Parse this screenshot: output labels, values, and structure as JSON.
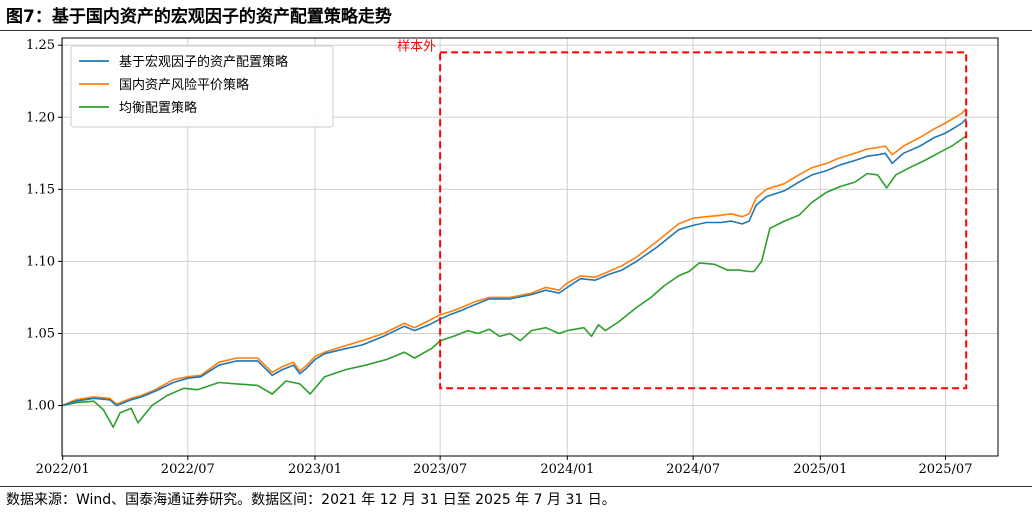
{
  "figure": {
    "title": "图7：基于国内资产的宏观因子的资产配置策略走势",
    "source_note": "数据来源：Wind、国泰海通证券研究。数据区间：2021 年 12 月 31 日至 2025 年 7 月 31 日。"
  },
  "chart_data": {
    "type": "line",
    "title": "",
    "xlabel": "",
    "ylabel": "",
    "x_tick_labels": [
      "2022/01",
      "2022/07",
      "2023/01",
      "2023/07",
      "2024/01",
      "2024/07",
      "2025/01",
      "2025/07"
    ],
    "x_tick_dates": [
      "2022-01-01",
      "2022-07-01",
      "2023-01-01",
      "2023-07-01",
      "2024-01-01",
      "2024-07-01",
      "2025-01-01",
      "2025-07-01"
    ],
    "x_range": [
      "2021-12-31",
      "2025-09-15"
    ],
    "ylim": [
      0.965,
      1.255
    ],
    "y_ticks": [
      1.0,
      1.05,
      1.1,
      1.15,
      1.2,
      1.25
    ],
    "y_tick_labels": [
      "1.00",
      "1.05",
      "1.10",
      "1.15",
      "1.20",
      "1.25"
    ],
    "grid": true,
    "legend_position": "top-left",
    "out_of_sample": {
      "label": "样本外",
      "x_start": "2023-07-01",
      "x_end": "2025-07-31",
      "y_low": 1.012,
      "y_high": 1.245,
      "color": "#ff0000"
    },
    "series": [
      {
        "name": "基于宏观因子的资产配置策略",
        "color": "#1f77b4",
        "x": [
          "2021-12-31",
          "2022-01-20",
          "2022-02-15",
          "2022-03-10",
          "2022-03-20",
          "2022-04-10",
          "2022-04-25",
          "2022-05-15",
          "2022-06-10",
          "2022-07-01",
          "2022-07-20",
          "2022-08-15",
          "2022-09-10",
          "2022-10-10",
          "2022-10-31",
          "2022-11-15",
          "2022-12-01",
          "2022-12-10",
          "2022-12-20",
          "2023-01-01",
          "2023-01-15",
          "2023-02-10",
          "2023-03-10",
          "2023-04-10",
          "2023-05-10",
          "2023-05-25",
          "2023-06-15",
          "2023-07-01",
          "2023-07-15",
          "2023-08-01",
          "2023-08-20",
          "2023-09-10",
          "2023-10-10",
          "2023-11-10",
          "2023-12-01",
          "2023-12-20",
          "2024-01-01",
          "2024-01-20",
          "2024-02-10",
          "2024-03-01",
          "2024-03-20",
          "2024-04-10",
          "2024-05-10",
          "2024-06-10",
          "2024-07-01",
          "2024-07-20",
          "2024-08-10",
          "2024-08-25",
          "2024-09-10",
          "2024-09-20",
          "2024-09-30",
          "2024-10-15",
          "2024-11-10",
          "2024-12-01",
          "2024-12-20",
          "2025-01-10",
          "2025-01-30",
          "2025-02-20",
          "2025-03-10",
          "2025-03-25",
          "2025-04-05",
          "2025-04-15",
          "2025-05-01",
          "2025-05-25",
          "2025-06-15",
          "2025-07-01",
          "2025-07-15",
          "2025-07-25",
          "2025-07-31"
        ],
        "values": [
          1.0,
          1.003,
          1.005,
          1.004,
          1.0,
          1.004,
          1.006,
          1.01,
          1.016,
          1.019,
          1.02,
          1.028,
          1.031,
          1.031,
          1.021,
          1.025,
          1.028,
          1.022,
          1.026,
          1.032,
          1.036,
          1.039,
          1.042,
          1.048,
          1.055,
          1.052,
          1.056,
          1.06,
          1.063,
          1.066,
          1.07,
          1.074,
          1.074,
          1.077,
          1.08,
          1.078,
          1.082,
          1.088,
          1.087,
          1.091,
          1.094,
          1.1,
          1.11,
          1.122,
          1.125,
          1.127,
          1.127,
          1.128,
          1.126,
          1.128,
          1.139,
          1.145,
          1.149,
          1.155,
          1.16,
          1.163,
          1.167,
          1.17,
          1.173,
          1.174,
          1.175,
          1.168,
          1.175,
          1.18,
          1.186,
          1.189,
          1.193,
          1.196,
          1.199
        ]
      },
      {
        "name": "国内资产风险平价策略",
        "color": "#ff7f0e",
        "x": [
          "2021-12-31",
          "2022-01-20",
          "2022-02-15",
          "2022-03-10",
          "2022-03-20",
          "2022-04-10",
          "2022-04-25",
          "2022-05-15",
          "2022-06-10",
          "2022-07-01",
          "2022-07-20",
          "2022-08-15",
          "2022-09-10",
          "2022-10-10",
          "2022-10-31",
          "2022-11-15",
          "2022-12-01",
          "2022-12-10",
          "2022-12-20",
          "2023-01-01",
          "2023-01-15",
          "2023-02-10",
          "2023-03-10",
          "2023-04-10",
          "2023-05-10",
          "2023-05-25",
          "2023-06-15",
          "2023-07-01",
          "2023-07-15",
          "2023-08-01",
          "2023-08-20",
          "2023-09-10",
          "2023-10-10",
          "2023-11-10",
          "2023-12-01",
          "2023-12-20",
          "2024-01-01",
          "2024-01-20",
          "2024-02-10",
          "2024-03-01",
          "2024-03-20",
          "2024-04-10",
          "2024-05-10",
          "2024-06-10",
          "2024-07-01",
          "2024-07-20",
          "2024-08-10",
          "2024-08-25",
          "2024-09-10",
          "2024-09-20",
          "2024-09-30",
          "2024-10-15",
          "2024-11-10",
          "2024-12-01",
          "2024-12-20",
          "2025-01-10",
          "2025-01-30",
          "2025-02-20",
          "2025-03-10",
          "2025-03-25",
          "2025-04-05",
          "2025-04-15",
          "2025-05-01",
          "2025-05-25",
          "2025-06-15",
          "2025-07-01",
          "2025-07-15",
          "2025-07-25",
          "2025-07-31"
        ],
        "values": [
          1.0,
          1.004,
          1.006,
          1.005,
          1.001,
          1.005,
          1.007,
          1.011,
          1.018,
          1.02,
          1.021,
          1.03,
          1.033,
          1.033,
          1.023,
          1.027,
          1.03,
          1.024,
          1.028,
          1.034,
          1.037,
          1.041,
          1.045,
          1.05,
          1.057,
          1.054,
          1.059,
          1.063,
          1.065,
          1.068,
          1.072,
          1.075,
          1.075,
          1.078,
          1.082,
          1.08,
          1.085,
          1.09,
          1.089,
          1.093,
          1.097,
          1.103,
          1.114,
          1.126,
          1.13,
          1.131,
          1.132,
          1.133,
          1.131,
          1.133,
          1.144,
          1.15,
          1.154,
          1.16,
          1.165,
          1.168,
          1.172,
          1.175,
          1.178,
          1.179,
          1.18,
          1.174,
          1.18,
          1.186,
          1.192,
          1.196,
          1.2,
          1.203,
          1.206
        ]
      },
      {
        "name": "均衡配置策略",
        "color": "#2ca02c",
        "x": [
          "2021-12-31",
          "2022-01-20",
          "2022-02-15",
          "2022-03-01",
          "2022-03-15",
          "2022-03-25",
          "2022-04-10",
          "2022-04-20",
          "2022-05-10",
          "2022-06-01",
          "2022-06-25",
          "2022-07-15",
          "2022-08-15",
          "2022-09-10",
          "2022-10-10",
          "2022-10-31",
          "2022-11-20",
          "2022-12-10",
          "2022-12-25",
          "2023-01-15",
          "2023-02-15",
          "2023-03-15",
          "2023-04-15",
          "2023-05-10",
          "2023-05-25",
          "2023-06-20",
          "2023-07-01",
          "2023-07-20",
          "2023-08-10",
          "2023-08-25",
          "2023-09-10",
          "2023-09-25",
          "2023-10-10",
          "2023-10-25",
          "2023-11-10",
          "2023-12-01",
          "2023-12-20",
          "2024-01-01",
          "2024-01-25",
          "2024-02-05",
          "2024-02-15",
          "2024-02-25",
          "2024-03-15",
          "2024-04-10",
          "2024-05-01",
          "2024-05-20",
          "2024-06-10",
          "2024-06-25",
          "2024-07-10",
          "2024-08-01",
          "2024-08-20",
          "2024-09-05",
          "2024-09-20",
          "2024-09-27",
          "2024-10-08",
          "2024-10-20",
          "2024-11-10",
          "2024-12-01",
          "2024-12-20",
          "2025-01-10",
          "2025-01-30",
          "2025-02-20",
          "2025-03-10",
          "2025-03-25",
          "2025-04-07",
          "2025-04-20",
          "2025-05-10",
          "2025-06-01",
          "2025-06-20",
          "2025-07-10",
          "2025-07-31"
        ],
        "values": [
          1.0,
          1.002,
          1.003,
          0.997,
          0.985,
          0.995,
          0.998,
          0.988,
          1.0,
          1.007,
          1.012,
          1.011,
          1.016,
          1.015,
          1.014,
          1.008,
          1.017,
          1.015,
          1.008,
          1.02,
          1.025,
          1.028,
          1.032,
          1.037,
          1.033,
          1.04,
          1.045,
          1.048,
          1.052,
          1.05,
          1.053,
          1.048,
          1.05,
          1.045,
          1.052,
          1.054,
          1.05,
          1.052,
          1.054,
          1.048,
          1.056,
          1.052,
          1.058,
          1.068,
          1.075,
          1.083,
          1.09,
          1.093,
          1.099,
          1.098,
          1.094,
          1.094,
          1.093,
          1.093,
          1.1,
          1.123,
          1.128,
          1.132,
          1.141,
          1.148,
          1.152,
          1.155,
          1.161,
          1.16,
          1.151,
          1.16,
          1.165,
          1.17,
          1.175,
          1.18,
          1.187
        ]
      }
    ]
  }
}
